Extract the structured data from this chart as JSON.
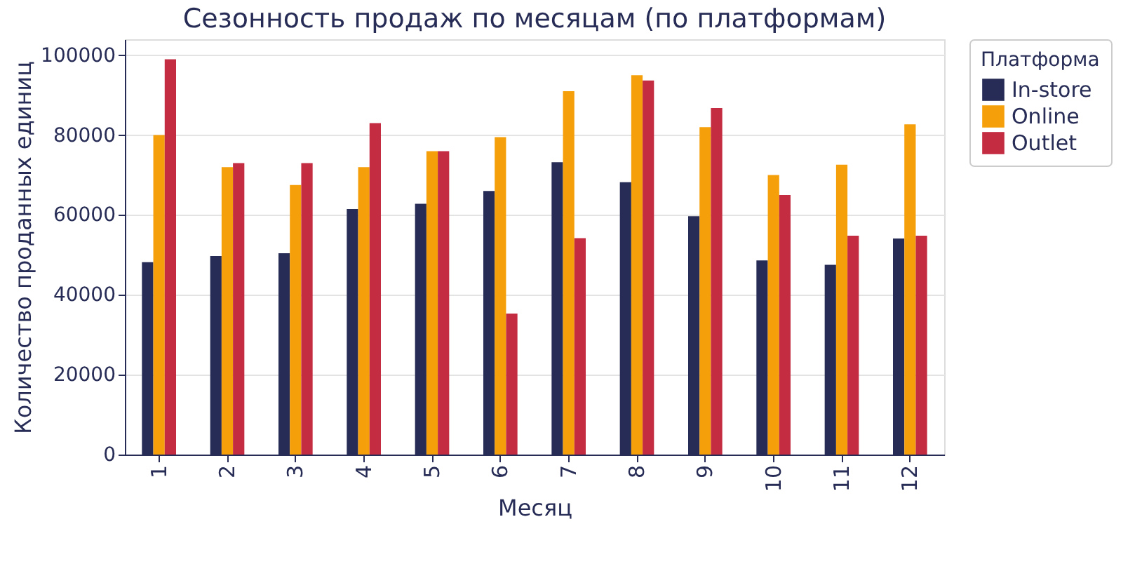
{
  "chart_data": {
    "type": "bar",
    "title": "Сезонность продаж по месяцам (по платформам)",
    "xlabel": "Месяц",
    "ylabel": "Количество проданных единиц",
    "legend_title": "Платформа",
    "categories": [
      "1",
      "2",
      "3",
      "4",
      "5",
      "6",
      "7",
      "8",
      "9",
      "10",
      "11",
      "12"
    ],
    "series": [
      {
        "name": "In-store",
        "color": "#262c55",
        "values": [
          48200,
          49700,
          50400,
          61500,
          62800,
          66000,
          73200,
          68200,
          59700,
          48600,
          47500,
          54100
        ]
      },
      {
        "name": "Online",
        "color": "#f5a00a",
        "values": [
          80000,
          72000,
          67500,
          72000,
          76000,
          79500,
          91000,
          95000,
          82000,
          70000,
          72600,
          82700
        ]
      },
      {
        "name": "Outlet",
        "color": "#c42c42",
        "values": [
          99000,
          73000,
          73000,
          83000,
          76000,
          35300,
          54200,
          93700,
          86800,
          65000,
          54800,
          54800
        ]
      }
    ],
    "ylim": [
      0,
      104000
    ],
    "yticks": [
      0,
      20000,
      40000,
      60000,
      80000,
      100000
    ],
    "grid": "y",
    "legend": "right"
  }
}
